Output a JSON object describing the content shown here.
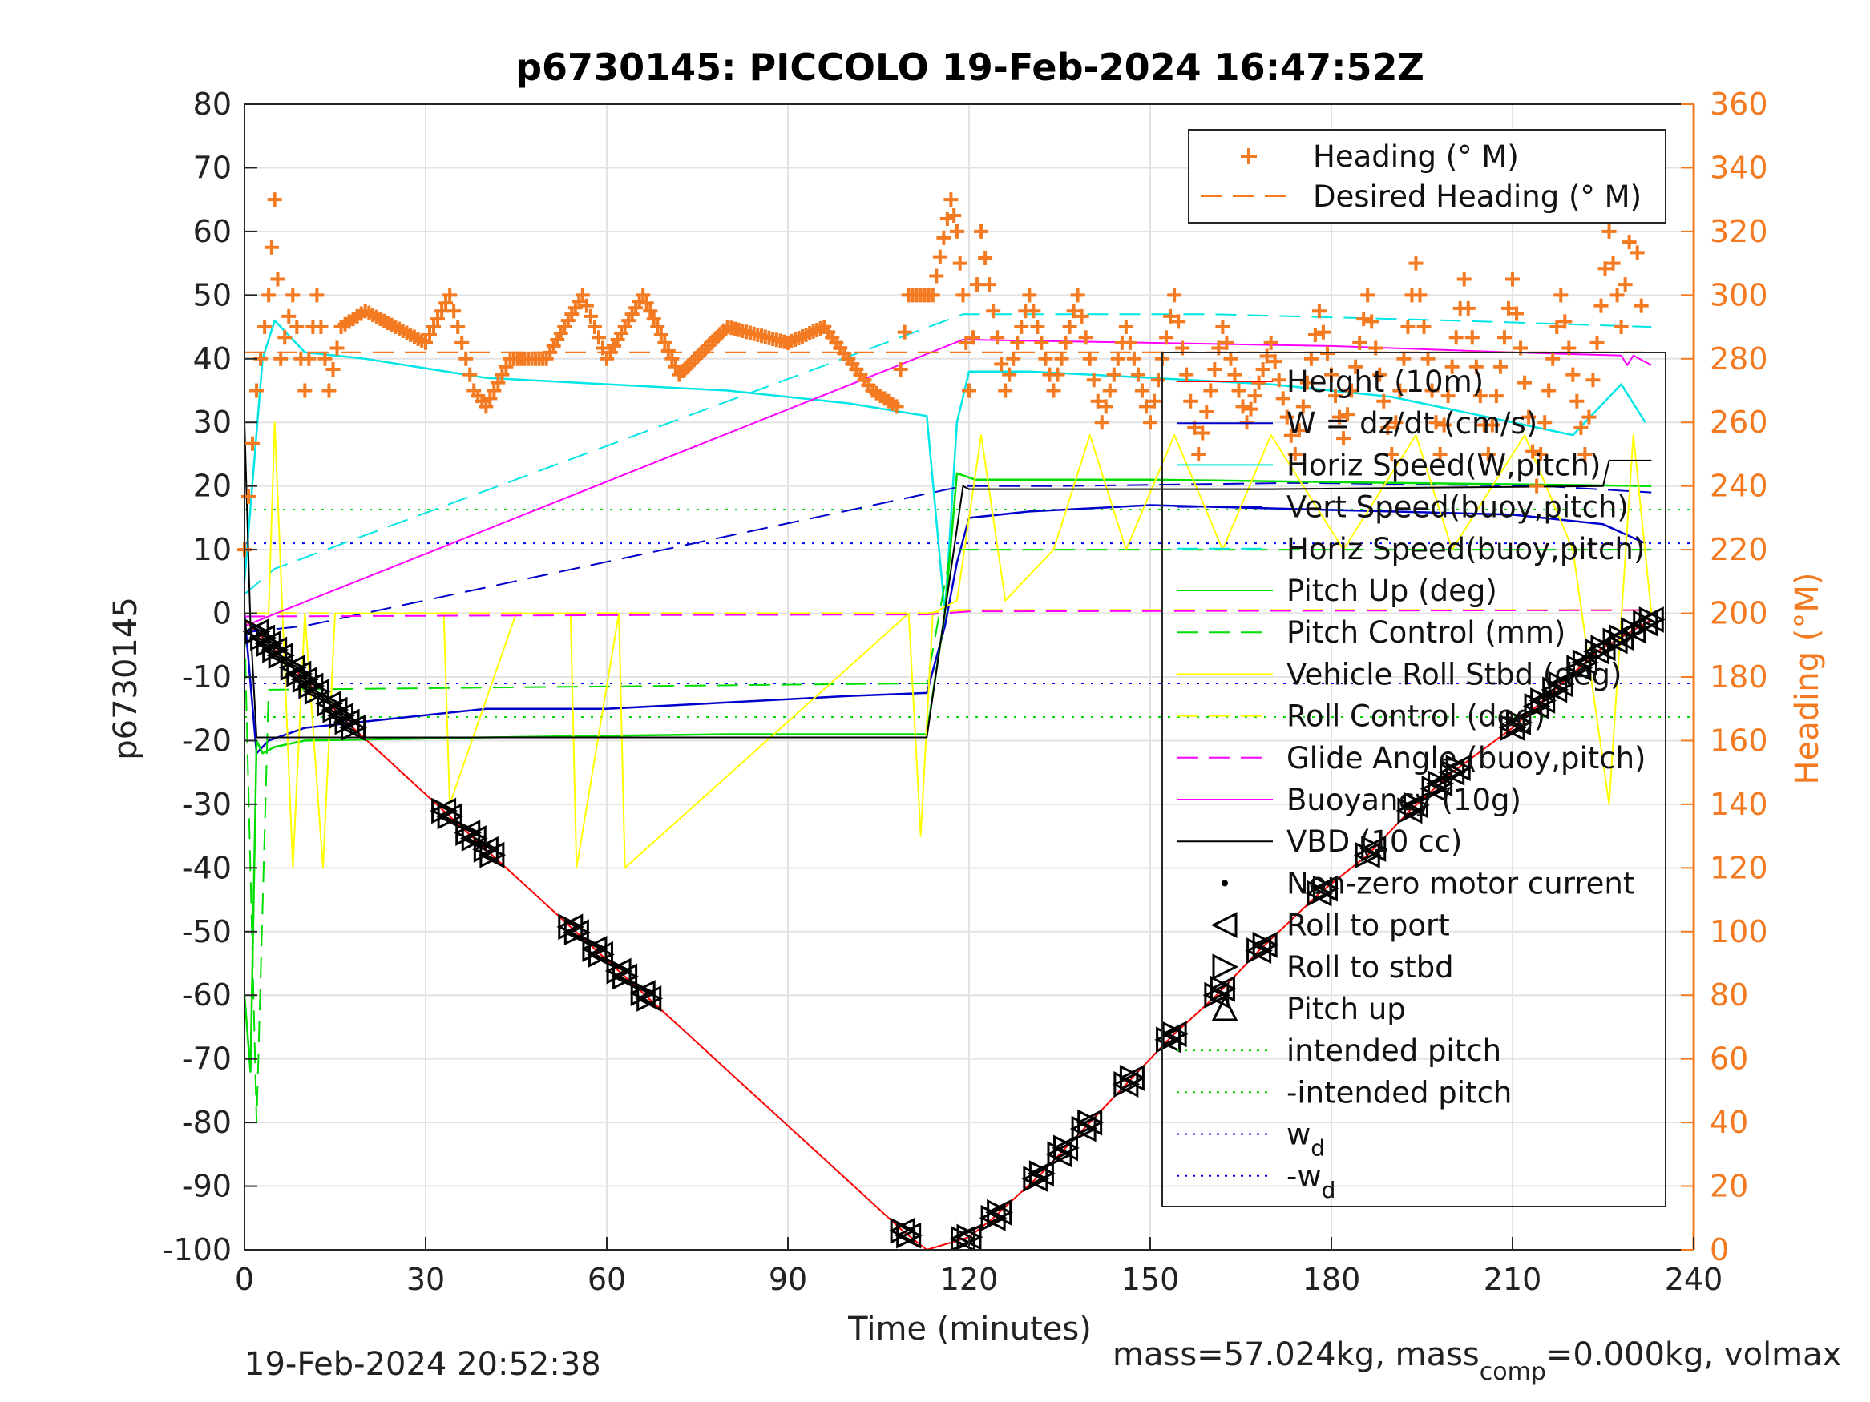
{
  "chart_data": {
    "type": "line",
    "title": "p6730145: PICCOLO 19-Feb-2024 16:47:52Z",
    "xlabel": "Time (minutes)",
    "ylabel": "p6730145",
    "y2label": "Heading (°M)",
    "xlim": [
      0,
      240
    ],
    "ylim": [
      -100,
      80
    ],
    "y2lim": [
      0,
      360
    ],
    "xticks": [
      0,
      30,
      60,
      90,
      120,
      150,
      180,
      210,
      240
    ],
    "yticks": [
      80,
      70,
      60,
      50,
      40,
      30,
      20,
      10,
      0,
      -10,
      -20,
      -30,
      -40,
      -50,
      -60,
      -70,
      -80,
      -90,
      -100
    ],
    "y2ticks": [
      360,
      340,
      320,
      300,
      280,
      260,
      240,
      220,
      200,
      180,
      160,
      140,
      120,
      100,
      80,
      60,
      40,
      20,
      0
    ],
    "grid": true,
    "colors": {
      "height": "#ff0000",
      "w": "#0000cc",
      "horiz_speed": "#00e5e5",
      "pitch": "#00dd00",
      "roll": "#ffff00",
      "glide": "#ff00ff",
      "buoyancy": "#ff00ff",
      "vbd": "#000000",
      "heading": "#f47a22",
      "wd": "#0000ff",
      "intended_pitch": "#00dd00"
    },
    "legend_heading": [
      {
        "label": "Heading (° M)",
        "style": "plus",
        "color": "#f47a22"
      },
      {
        "label": "Desired Heading (° M)",
        "style": "dash",
        "color": "#f47a22"
      }
    ],
    "legend_main": [
      {
        "label": "Height (10m)",
        "style": "solid",
        "color": "#ff0000"
      },
      {
        "label": "W = dz/dt (cm/s)",
        "style": "solid",
        "color": "#0000cc"
      },
      {
        "label": "Horiz Speed(W,pitch)",
        "style": "solid",
        "color": "#00e5e5"
      },
      {
        "label": "Vert Speed(buoy,pitch)",
        "style": "dash",
        "color": "#0000cc"
      },
      {
        "label": "Horiz Speed(buoy,pitch)",
        "style": "dash",
        "color": "#00e5e5"
      },
      {
        "label": "Pitch Up (deg)",
        "style": "solid",
        "color": "#00dd00"
      },
      {
        "label": "Pitch Control (mm)",
        "style": "dash",
        "color": "#00dd00"
      },
      {
        "label": "Vehicle Roll Stbd (deg)",
        "style": "solid",
        "color": "#ffff00"
      },
      {
        "label": "Roll Control (deg)",
        "style": "dash",
        "color": "#ffff00"
      },
      {
        "label": "Glide Angle (buoy,pitch)",
        "style": "dash",
        "color": "#ff00ff"
      },
      {
        "label": "Buoyancy (10g)",
        "style": "solid",
        "color": "#ff00ff"
      },
      {
        "label": "VBD (10 cc)",
        "style": "solid",
        "color": "#000000"
      },
      {
        "label": "Non-zero motor current",
        "style": "dot",
        "color": "#000000"
      },
      {
        "label": "Roll to port",
        "style": "tri-left",
        "color": "#000000"
      },
      {
        "label": "Roll to stbd",
        "style": "tri-right",
        "color": "#000000"
      },
      {
        "label": "Pitch up",
        "style": "tri-up",
        "color": "#000000"
      },
      {
        "label": "intended pitch",
        "style": "dotted",
        "color": "#00dd00"
      },
      {
        "label": "-intended pitch",
        "style": "dotted",
        "color": "#00dd00"
      },
      {
        "label": "w",
        "sub": "d",
        "style": "dotted",
        "color": "#0000ff"
      },
      {
        "label": "-w",
        "sub": "d",
        "style": "dotted",
        "color": "#0000ff"
      }
    ],
    "series": [
      {
        "name": "Height (10m)",
        "x": [
          0,
          18,
          109,
          113,
          120,
          124,
          132,
          139,
          146,
          153,
          161,
          168,
          178,
          186,
          193,
          200,
          210,
          217,
          224,
          233
        ],
        "y": [
          -1,
          -18,
          -97,
          -100,
          -98,
          -95,
          -88,
          -81,
          -74,
          -67,
          -60,
          -53,
          -44,
          -38,
          -31,
          -25,
          -18,
          -12,
          -6,
          -1
        ]
      },
      {
        "name": "W = dz/dt (cm/s)",
        "x": [
          0,
          2,
          4,
          10,
          20,
          40,
          60,
          80,
          100,
          113,
          116,
          118,
          120,
          130,
          150,
          170,
          190,
          210,
          225,
          232
        ],
        "y": [
          0,
          -22,
          -20,
          -18,
          -17,
          -15,
          -15,
          -14,
          -13,
          -12.5,
          -2,
          8,
          15,
          16,
          17,
          16.5,
          16,
          15.5,
          14,
          11
        ]
      },
      {
        "name": "Horiz Speed(W,pitch)",
        "x": [
          0,
          3,
          5,
          10,
          20,
          40,
          60,
          80,
          100,
          113,
          116,
          118,
          120,
          130,
          150,
          170,
          190,
          210,
          220,
          228,
          232
        ],
        "y": [
          5,
          40,
          46,
          41,
          40,
          37,
          36,
          35,
          33,
          31,
          0,
          30,
          38,
          38,
          37,
          36,
          34,
          30,
          28,
          36,
          30
        ]
      },
      {
        "name": "Vert Speed(buoy,pitch)",
        "x": [
          0,
          10,
          119,
          135,
          175,
          215,
          233
        ],
        "y": [
          -3,
          -2,
          20,
          20,
          20.5,
          20,
          19
        ]
      },
      {
        "name": "Horiz Speed(buoy,pitch)",
        "x": [
          0,
          5,
          119,
          140,
          160,
          200,
          233
        ],
        "y": [
          3,
          7,
          47,
          47,
          47,
          46,
          45
        ]
      },
      {
        "name": "Pitch Up (deg)",
        "x": [
          0,
          1,
          2,
          3,
          5,
          10,
          40,
          80,
          113,
          116,
          118,
          121,
          150,
          190,
          233
        ],
        "y": [
          -60,
          -72,
          -20,
          -22,
          -21,
          -20,
          -19.5,
          -19,
          -19,
          0,
          22,
          21,
          21,
          20.5,
          20
        ]
      },
      {
        "name": "Pitch Control (mm)",
        "x": [
          0,
          2,
          4,
          113,
          117,
          120,
          233
        ],
        "y": [
          -2,
          -80,
          -12,
          -11,
          10,
          10,
          10
        ]
      },
      {
        "name": "Vehicle Roll Stbd (deg)",
        "x": [
          0,
          4,
          5,
          8,
          10,
          13,
          15,
          20,
          33,
          34,
          45,
          54,
          55,
          62,
          63,
          110,
          112,
          114,
          118,
          122,
          126,
          134,
          140,
          146,
          154,
          162,
          170,
          182,
          194,
          200,
          212,
          220,
          226,
          230,
          233
        ],
        "y": [
          0,
          0,
          30,
          -40,
          0,
          -40,
          0,
          0,
          0,
          -30,
          0,
          0,
          -40,
          0,
          -40,
          0,
          -35,
          0,
          2,
          28,
          2,
          10,
          28,
          10,
          28,
          10,
          28,
          10,
          28,
          10,
          28,
          10,
          -30,
          28,
          0
        ]
      },
      {
        "name": "Roll Control (deg)",
        "x": [
          0,
          20,
          60,
          100,
          113,
          118,
          140,
          180,
          220,
          233
        ],
        "y": [
          0,
          0,
          0,
          0,
          0,
          0.5,
          0.5,
          0.5,
          0.5,
          0.5
        ]
      },
      {
        "name": "Glide Angle (buoy,pitch)",
        "x": [
          0,
          60,
          113,
          120,
          180,
          233
        ],
        "y": [
          -0.5,
          -0.3,
          -0.2,
          0.3,
          0.4,
          0.5
        ]
      },
      {
        "name": "Buoyancy (10g)",
        "x": [
          0,
          119,
          150,
          180,
          210,
          228,
          229,
          230,
          233
        ],
        "y": [
          -2,
          43,
          42.5,
          42,
          41,
          40.5,
          39,
          40.5,
          39
        ]
      },
      {
        "name": "VBD (10 cc)",
        "x": [
          0,
          1,
          2,
          113,
          119,
          120,
          170,
          225,
          226,
          233
        ],
        "y": [
          30,
          -2,
          -19.5,
          -19.5,
          20,
          19.5,
          19.5,
          20,
          24,
          24
        ]
      },
      {
        "name": "Heading (° M)",
        "axis": "right",
        "x": [
          0,
          2,
          4,
          5,
          6,
          8,
          10,
          12,
          14,
          16,
          20,
          25,
          30,
          34,
          38,
          40,
          44,
          50,
          56,
          60,
          66,
          72,
          80,
          90,
          96,
          100,
          104,
          108,
          110,
          112,
          114,
          117,
          118,
          119,
          120,
          122,
          126,
          130,
          134,
          138,
          142,
          146,
          150,
          154,
          158,
          162,
          166,
          170,
          174,
          178,
          182,
          186,
          190,
          194,
          198,
          202,
          206,
          210,
          214,
          218,
          222,
          226,
          228,
          230,
          232
        ],
        "y": [
          220,
          270,
          300,
          330,
          280,
          300,
          270,
          300,
          270,
          290,
          295,
          290,
          285,
          300,
          270,
          265,
          280,
          280,
          300,
          280,
          300,
          275,
          290,
          285,
          290,
          280,
          270,
          265,
          300,
          300,
          300,
          330,
          320,
          300,
          270,
          320,
          270,
          300,
          270,
          300,
          260,
          290,
          260,
          300,
          250,
          290,
          260,
          285,
          250,
          295,
          255,
          300,
          250,
          310,
          250,
          305,
          250,
          305,
          240,
          300,
          250,
          320,
          290,
          330,
          280
        ]
      },
      {
        "name": "Desired Heading (° M)",
        "axis": "right",
        "x": [
          0,
          233
        ],
        "y": [
          282,
          282
        ]
      }
    ],
    "reference_lines": [
      {
        "name": "intended pitch",
        "y": 16.3
      },
      {
        "name": "-intended pitch",
        "y": -16.3
      },
      {
        "name": "wd",
        "y": 11
      },
      {
        "name": "-wd",
        "y": -11
      }
    ],
    "markers": {
      "descent_x": [
        2,
        3,
        4,
        5,
        6,
        8,
        9,
        10,
        11,
        12,
        14,
        15,
        16,
        17,
        18,
        33,
        34,
        37,
        38,
        40,
        41,
        54,
        55,
        58,
        59,
        62,
        63,
        66,
        67,
        109,
        110
      ],
      "climb_x": [
        119,
        120,
        124,
        125,
        131,
        132,
        135,
        136,
        139,
        140,
        146,
        147,
        153,
        154,
        161,
        162,
        168,
        169,
        178,
        179,
        186,
        187,
        193,
        194,
        197,
        198,
        200,
        201,
        210,
        211,
        214,
        215,
        217,
        218,
        221,
        222,
        224,
        225,
        227,
        228,
        230,
        232,
        233
      ]
    }
  },
  "footer": {
    "left": "19-Feb-2024 20:52:38",
    "right_prefix": "mass=57.024kg, mass",
    "right_sub": "comp",
    "right_suffix": "=0.000kg, volmax"
  }
}
